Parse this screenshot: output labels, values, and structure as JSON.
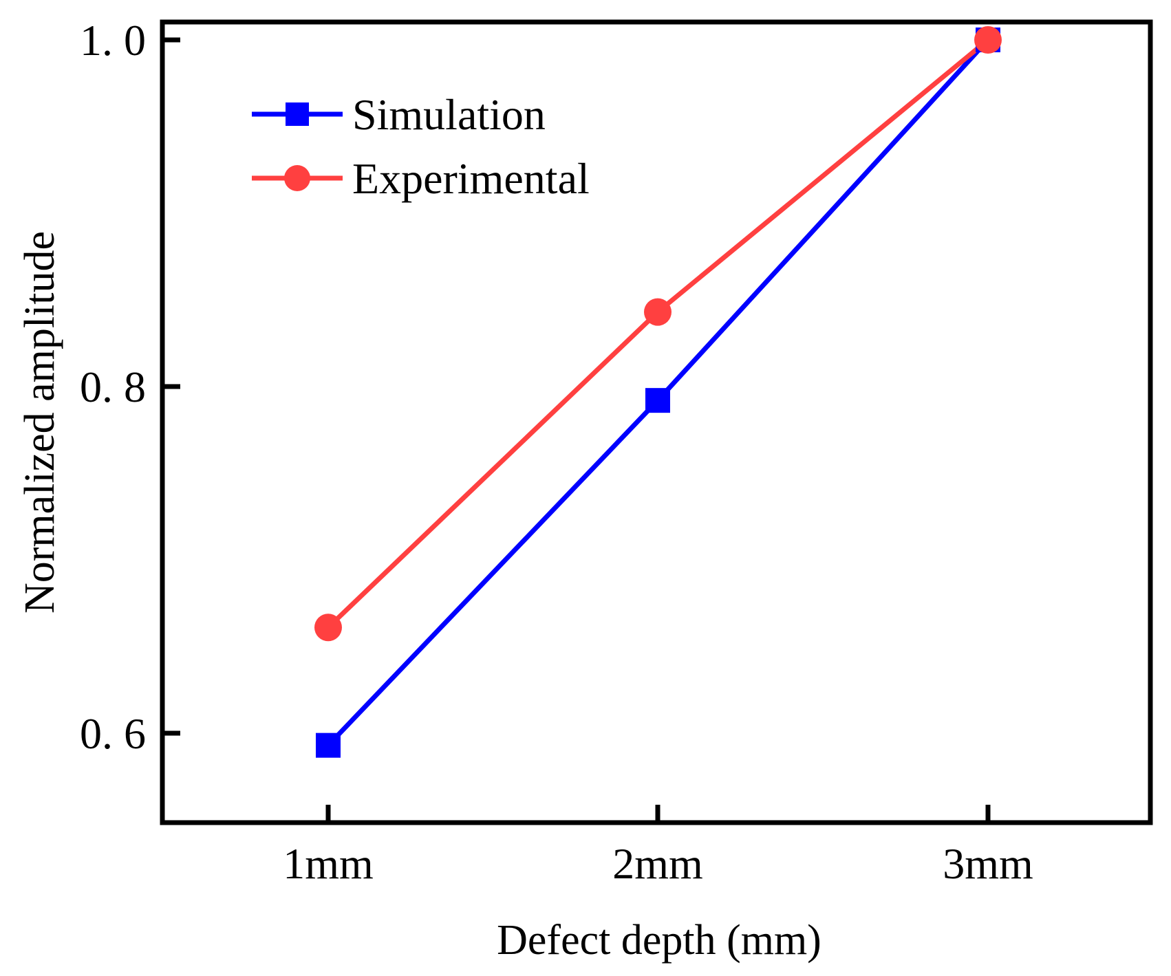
{
  "chart_data": {
    "type": "line",
    "title": "",
    "xlabel": "Defect depth (mm)",
    "ylabel": "Normalized amplitude",
    "categories": [
      "1mm",
      "2mm",
      "3mm"
    ],
    "ylim": [
      0.55,
      1.0
    ],
    "yticks": [
      0.6,
      0.8,
      1.0
    ],
    "ytick_labels": [
      "0. 6",
      "0. 8",
      "1. 0"
    ],
    "grid": false,
    "legend_position": "top-left",
    "series": [
      {
        "name": "Simulation",
        "color": "#0000ff",
        "marker": "square",
        "values": [
          0.593,
          0.792,
          1.0
        ]
      },
      {
        "name": "Experimental",
        "color": "#ff4040",
        "marker": "circle",
        "values": [
          0.661,
          0.843,
          1.0
        ]
      }
    ]
  }
}
